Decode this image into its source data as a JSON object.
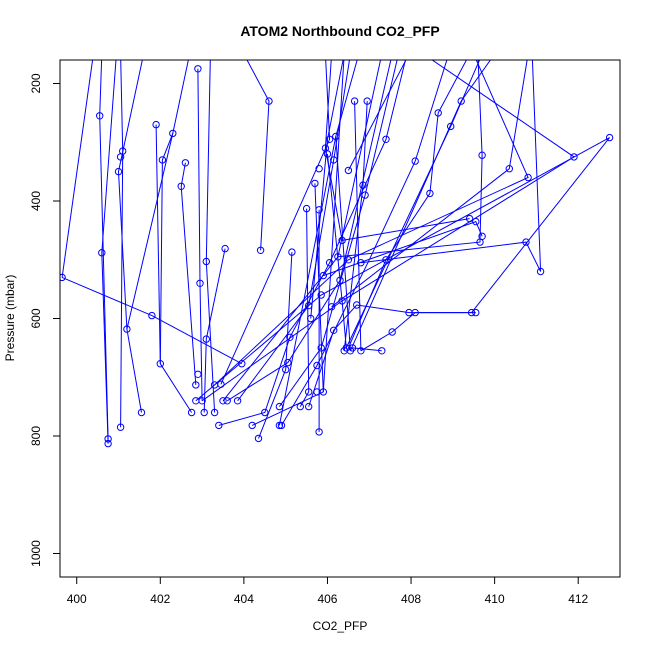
{
  "chart_data": {
    "type": "line",
    "title": "ATOM2 Northbound CO2_PFP",
    "xlabel": "CO2_PFP",
    "ylabel": "Pressure (mbar)",
    "xlim": [
      399.6,
      413.0
    ],
    "ylim": [
      1040,
      160
    ],
    "y_inverted": true,
    "xticks": [
      400,
      402,
      404,
      406,
      408,
      410,
      412
    ],
    "yticks": [
      200,
      400,
      600,
      800,
      1000
    ],
    "color": "#0000ff",
    "grid": false,
    "series": [
      {
        "profiles_note": "approximate reading of profile points",
        "points": [
          [
            400.6,
            150
          ],
          [
            400.55,
            255
          ],
          [
            400.6,
            488
          ],
          [
            400.75,
            805
          ],
          [
            400.75,
            813
          ],
          [
            401.05,
            785
          ],
          [
            401.0,
            350
          ],
          [
            401.05,
            325
          ],
          [
            401.1,
            315
          ],
          [
            401.2,
            618
          ],
          [
            401.55,
            760
          ],
          [
            401.8,
            595
          ],
          [
            401.9,
            270
          ],
          [
            402.0,
            677
          ],
          [
            402.05,
            330
          ],
          [
            402.3,
            285
          ],
          [
            402.5,
            375
          ],
          [
            402.6,
            335
          ],
          [
            402.75,
            760
          ],
          [
            402.85,
            713
          ],
          [
            402.85,
            740
          ],
          [
            402.9,
            695
          ],
          [
            402.9,
            175
          ],
          [
            402.95,
            540
          ],
          [
            403.0,
            740
          ],
          [
            403.05,
            760
          ],
          [
            403.1,
            503
          ],
          [
            403.1,
            635
          ],
          [
            403.3,
            713
          ],
          [
            403.3,
            760
          ],
          [
            403.4,
            782
          ],
          [
            403.45,
            712
          ],
          [
            403.5,
            740
          ],
          [
            403.55,
            481
          ],
          [
            403.6,
            740
          ],
          [
            403.85,
            740
          ],
          [
            403.95,
            677
          ],
          [
            404.2,
            782
          ],
          [
            404.35,
            804
          ],
          [
            404.4,
            484
          ],
          [
            404.5,
            760
          ],
          [
            404.6,
            230
          ],
          [
            404.85,
            750
          ],
          [
            404.85,
            782
          ],
          [
            404.9,
            782
          ],
          [
            405.0,
            687
          ],
          [
            405.05,
            675
          ],
          [
            405.1,
            632
          ],
          [
            405.15,
            487
          ],
          [
            405.35,
            750
          ],
          [
            405.5,
            413
          ],
          [
            405.55,
            725
          ],
          [
            405.55,
            750
          ],
          [
            405.55,
            578
          ],
          [
            405.6,
            600
          ],
          [
            405.7,
            370
          ],
          [
            405.75,
            680
          ],
          [
            405.75,
            725
          ],
          [
            405.8,
            793
          ],
          [
            405.8,
            415
          ],
          [
            405.8,
            345
          ],
          [
            405.85,
            650
          ],
          [
            405.85,
            560
          ],
          [
            405.9,
            725
          ],
          [
            405.9,
            527
          ],
          [
            405.95,
            310
          ],
          [
            406.0,
            320
          ],
          [
            406.05,
            505
          ],
          [
            406.05,
            295
          ],
          [
            406.1,
            580
          ],
          [
            406.15,
            620
          ],
          [
            406.15,
            330
          ],
          [
            406.2,
            290
          ],
          [
            406.25,
            495
          ],
          [
            406.3,
            535
          ],
          [
            406.35,
            570
          ],
          [
            406.35,
            467
          ],
          [
            406.4,
            655
          ],
          [
            406.45,
            650
          ],
          [
            406.5,
            500
          ],
          [
            406.5,
            348
          ],
          [
            406.55,
            655
          ],
          [
            406.6,
            650
          ],
          [
            406.65,
            230
          ],
          [
            406.7,
            577
          ],
          [
            406.8,
            655
          ],
          [
            406.8,
            505
          ],
          [
            406.85,
            373
          ],
          [
            406.9,
            390
          ],
          [
            406.95,
            230
          ],
          [
            407.3,
            655
          ],
          [
            407.4,
            295
          ],
          [
            407.4,
            500
          ],
          [
            407.55,
            623
          ],
          [
            407.95,
            590
          ],
          [
            408.1,
            590
          ],
          [
            408.1,
            332
          ],
          [
            408.45,
            387
          ],
          [
            408.65,
            250
          ],
          [
            408.95,
            273
          ],
          [
            409.2,
            230
          ],
          [
            409.4,
            430
          ],
          [
            409.45,
            590
          ],
          [
            409.55,
            435
          ],
          [
            409.55,
            590
          ],
          [
            409.65,
            470
          ],
          [
            409.7,
            322
          ],
          [
            409.7,
            460
          ],
          [
            410.35,
            345
          ],
          [
            410.75,
            470
          ],
          [
            410.8,
            360
          ],
          [
            411.1,
            520
          ],
          [
            411.9,
            325
          ],
          [
            412.75,
            292
          ],
          [
            399.65,
            530
          ]
        ],
        "segments": [
          [
            [
              400.6,
              150
            ],
            [
              400.55,
              255
            ],
            [
              400.75,
              805
            ]
          ],
          [
            [
              400.95,
              150
            ],
            [
              400.6,
              488
            ],
            [
              400.75,
              813
            ]
          ],
          [
            [
              401.05,
              150
            ],
            [
              401.1,
              315
            ],
            [
              401.05,
              785
            ]
          ],
          [
            [
              401.6,
              150
            ],
            [
              401.0,
              350
            ],
            [
              401.2,
              618
            ],
            [
              401.55,
              760
            ]
          ],
          [
            [
              402.9,
              175
            ],
            [
              402.95,
              540
            ],
            [
              403.0,
              740
            ]
          ],
          [
            [
              403.2,
              150
            ],
            [
              403.1,
              503
            ],
            [
              403.3,
              760
            ]
          ],
          [
            [
              402.3,
              285
            ],
            [
              402.05,
              330
            ],
            [
              402.0,
              677
            ],
            [
              402.75,
              760
            ]
          ],
          [
            [
              402.6,
              335
            ],
            [
              402.5,
              375
            ],
            [
              402.85,
              713
            ]
          ],
          [
            [
              403.55,
              481
            ],
            [
              403.1,
              635
            ],
            [
              403.05,
              760
            ]
          ],
          [
            [
              404.4,
              484
            ],
            [
              404.6,
              230
            ],
            [
              404.0,
              150
            ]
          ],
          [
            [
              405.15,
              487
            ],
            [
              405.0,
              687
            ],
            [
              404.35,
              804
            ]
          ],
          [
            [
              405.5,
              413
            ],
            [
              405.55,
              725
            ],
            [
              405.35,
              750
            ]
          ],
          [
            [
              405.7,
              370
            ],
            [
              405.9,
              725
            ]
          ],
          [
            [
              405.8,
              415
            ],
            [
              405.8,
              793
            ]
          ],
          [
            [
              406.0,
              320
            ],
            [
              406.35,
              570
            ],
            [
              406.45,
              650
            ]
          ],
          [
            [
              406.2,
              290
            ],
            [
              406.55,
              655
            ]
          ],
          [
            [
              406.65,
              230
            ],
            [
              406.8,
              655
            ]
          ],
          [
            [
              406.95,
              230
            ],
            [
              406.85,
              373
            ],
            [
              406.4,
              655
            ]
          ],
          [
            [
              399.65,
              530
            ],
            [
              400.4,
              150
            ]
          ],
          [
            [
              399.65,
              530
            ],
            [
              401.8,
              595
            ],
            [
              403.95,
              677
            ]
          ],
          [
            [
              401.9,
              270
            ],
            [
              402.0,
              677
            ]
          ],
          [
            [
              403.4,
              782
            ],
            [
              404.5,
              760
            ],
            [
              405.1,
              632
            ],
            [
              406.05,
              505
            ],
            [
              407.4,
              295
            ],
            [
              407.9,
              150
            ]
          ],
          [
            [
              403.6,
              740
            ],
            [
              405.05,
              675
            ],
            [
              406.3,
              535
            ],
            [
              407.55,
              150
            ]
          ],
          [
            [
              404.9,
              782
            ],
            [
              405.75,
              680
            ],
            [
              407.0,
              500
            ],
            [
              408.1,
              332
            ],
            [
              408.9,
              150
            ]
          ],
          [
            [
              404.85,
              750
            ],
            [
              405.85,
              650
            ],
            [
              406.9,
              390
            ],
            [
              407.7,
              150
            ]
          ],
          [
            [
              405.55,
              750
            ],
            [
              406.15,
              620
            ],
            [
              406.7,
              577
            ],
            [
              407.95,
              590
            ],
            [
              409.45,
              590
            ]
          ],
          [
            [
              405.6,
              600
            ],
            [
              406.0,
              295
            ],
            [
              406.4,
              150
            ]
          ],
          [
            [
              406.6,
              650
            ],
            [
              407.3,
              655
            ]
          ],
          [
            [
              406.8,
              655
            ],
            [
              407.55,
              623
            ],
            [
              408.1,
              590
            ],
            [
              409.55,
              590
            ]
          ],
          [
            [
              406.5,
              650
            ],
            [
              407.4,
              500
            ],
            [
              408.45,
              387
            ],
            [
              408.65,
              250
            ],
            [
              409.4,
              150
            ]
          ],
          [
            [
              406.45,
              650
            ],
            [
              408.95,
              273
            ],
            [
              409.7,
              150
            ]
          ],
          [
            [
              406.55,
              655
            ],
            [
              409.2,
              230
            ],
            [
              410.0,
              150
            ]
          ],
          [
            [
              406.5,
              348
            ],
            [
              407.95,
              150
            ]
          ],
          [
            [
              409.4,
              430
            ],
            [
              406.35,
              467
            ],
            [
              405.95,
              310
            ],
            [
              406.1,
              150
            ]
          ],
          [
            [
              406.25,
              495
            ],
            [
              409.65,
              470
            ],
            [
              409.7,
              322
            ],
            [
              409.6,
              150
            ]
          ],
          [
            [
              405.9,
              527
            ],
            [
              409.55,
              435
            ],
            [
              409.7,
              460
            ]
          ],
          [
            [
              406.1,
              580
            ],
            [
              410.35,
              345
            ],
            [
              410.8,
              150
            ]
          ],
          [
            [
              406.8,
              505
            ],
            [
              410.75,
              470
            ],
            [
              411.1,
              520
            ],
            [
              410.9,
              150
            ]
          ],
          [
            [
              403.3,
              713
            ],
            [
              406.5,
              500
            ],
            [
              410.8,
              360
            ],
            [
              409.5,
              150
            ]
          ],
          [
            [
              403.0,
              740
            ],
            [
              406.35,
              570
            ],
            [
              411.9,
              325
            ],
            [
              408.3,
              150
            ]
          ],
          [
            [
              402.85,
              740
            ],
            [
              405.85,
              560
            ],
            [
              412.75,
              292
            ],
            [
              409.45,
              590
            ]
          ],
          [
            [
              403.45,
              712
            ],
            [
              406.05,
              295
            ],
            [
              405.95,
              150
            ]
          ],
          [
            [
              401.2,
              618
            ],
            [
              402.3,
              285
            ],
            [
              402.7,
              150
            ]
          ],
          [
            [
              403.85,
              740
            ],
            [
              405.55,
              578
            ],
            [
              406.15,
              330
            ],
            [
              406.55,
              150
            ]
          ],
          [
            [
              404.2,
              782
            ],
            [
              405.9,
              725
            ],
            [
              406.4,
              150
            ]
          ],
          [
            [
              404.85,
              782
            ],
            [
              406.2,
              290
            ],
            [
              406.75,
              150
            ]
          ],
          [
            [
              403.5,
              740
            ],
            [
              406.25,
              495
            ],
            [
              407.3,
              150
            ]
          ]
        ]
      }
    ]
  }
}
